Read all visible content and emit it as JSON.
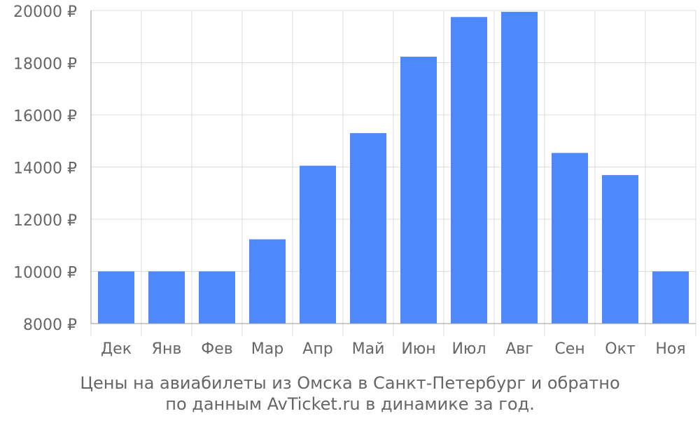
{
  "chart_data": {
    "type": "bar",
    "title": "",
    "xlabel": "",
    "ylabel": "",
    "categories": [
      "Дек",
      "Янв",
      "Фев",
      "Мар",
      "Апр",
      "Май",
      "Июн",
      "Июл",
      "Авг",
      "Сен",
      "Окт",
      "Ноя"
    ],
    "values": [
      10000,
      10000,
      10000,
      11230,
      14050,
      15300,
      18230,
      19750,
      19950,
      14540,
      13690,
      10000
    ],
    "ylim": [
      8000,
      20000
    ],
    "yticks": [
      8000,
      10000,
      12000,
      14000,
      16000,
      18000,
      20000
    ],
    "y_tick_suffix": " ₽",
    "grid": true,
    "legend": "none",
    "colors": {
      "bar": "#4d88fc",
      "grid": "#dcdcdc",
      "axis": "#999999",
      "text": "#666666"
    }
  },
  "caption": {
    "line1": "Цены на авиабилеты из Омска в Санкт-Петербург и обратно",
    "line2": "по данным AvTicket.ru в динамике за год."
  }
}
